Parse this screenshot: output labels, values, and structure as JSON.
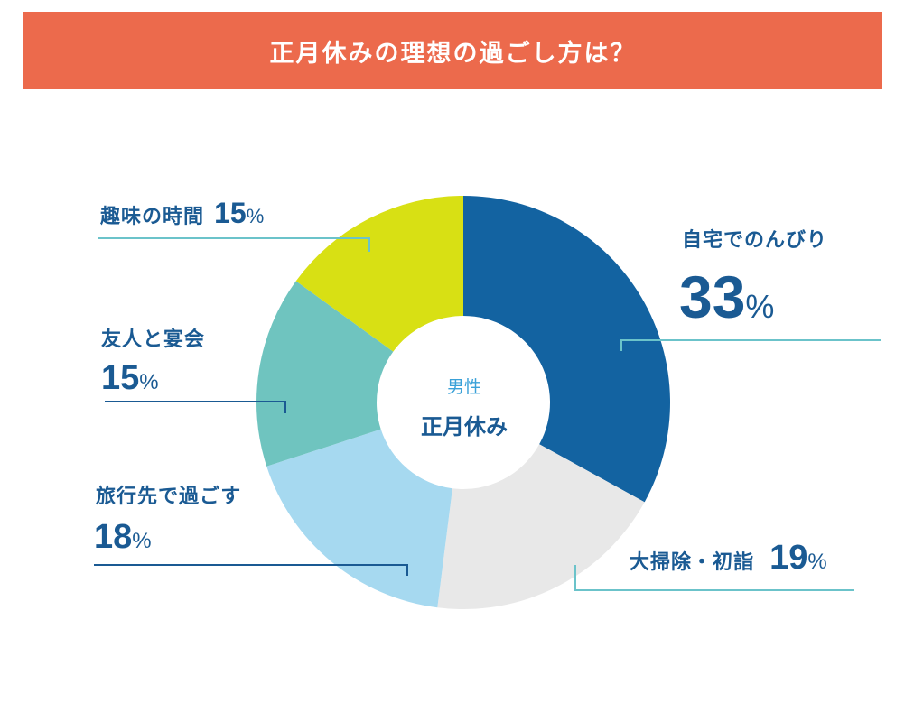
{
  "title": "正月休みの理想の過ごし方は？",
  "colors": {
    "title_bg": "#ec6a4c",
    "label_text": "#1a5a93",
    "leader_teal": "#6bc3ca",
    "leader_dark": "#1a5a93"
  },
  "chart_data": {
    "type": "pie",
    "donut": true,
    "center_label": {
      "sub": "男性",
      "main": "正月休み"
    },
    "slices": [
      {
        "label": "自宅でのんびり",
        "value": 33,
        "percent_label": "33",
        "unit": "%",
        "color": "#1363a1"
      },
      {
        "label": "大掃除・初詣",
        "value": 19,
        "percent_label": "19",
        "unit": "%",
        "color": "#e8e8e8"
      },
      {
        "label": "旅行先で過ごす",
        "value": 18,
        "percent_label": "18",
        "unit": "%",
        "color": "#a6d9f0"
      },
      {
        "label": "友人と宴会",
        "value": 15,
        "percent_label": "15",
        "unit": "%",
        "color": "#6fc4bf"
      },
      {
        "label": "趣味の時間",
        "value": 15,
        "percent_label": "15",
        "unit": "%",
        "color": "#d8e014"
      }
    ]
  }
}
